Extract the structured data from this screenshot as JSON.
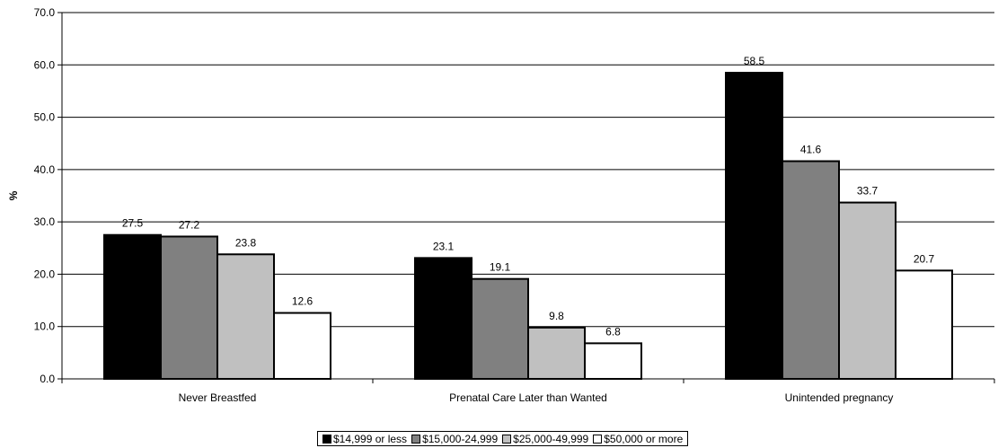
{
  "chart_data": {
    "type": "bar",
    "categories": [
      "Never Breastfed",
      "Prenatal Care Later than Wanted",
      "Unintended pregnancy"
    ],
    "series": [
      {
        "name": "$14,999 or less",
        "values": [
          27.5,
          23.1,
          58.5
        ],
        "color": "#000000"
      },
      {
        "name": "$15,000-24,999",
        "values": [
          27.2,
          19.1,
          41.6
        ],
        "color": "#808080"
      },
      {
        "name": "$25,000-49,999",
        "values": [
          23.8,
          9.8,
          33.7
        ],
        "color": "#c0c0c0"
      },
      {
        "name": "$50,000 or more",
        "values": [
          12.6,
          6.8,
          20.7
        ],
        "color": "#ffffff"
      }
    ],
    "ylabel": "%",
    "ylim": [
      0,
      70
    ],
    "yticks": [
      "0.0",
      "10.0",
      "20.0",
      "30.0",
      "40.0",
      "50.0",
      "60.0",
      "70.0"
    ],
    "grid": true,
    "legend_position": "bottom"
  }
}
